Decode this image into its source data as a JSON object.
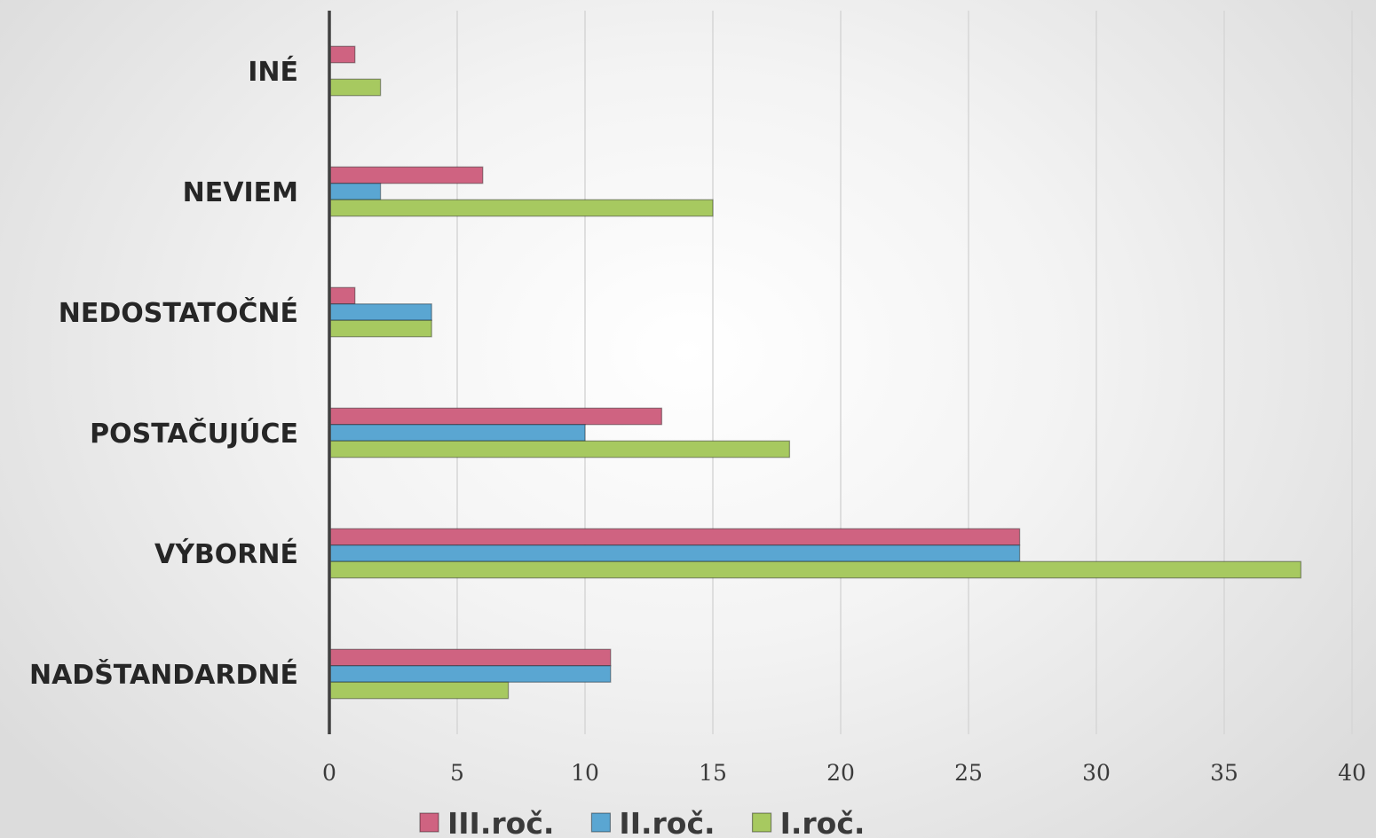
{
  "chart_data": {
    "type": "bar",
    "orientation": "horizontal",
    "categories": [
      "NADŠTANDARDNÉ",
      "VÝBORNÉ",
      "POSTAČUJÚCE",
      "NEDOSTATOČNÉ",
      "NEVIEM",
      "INÉ"
    ],
    "series": [
      {
        "name": "III.roč.",
        "color": "#cf6381",
        "values": [
          11,
          27,
          13,
          1,
          6,
          1
        ]
      },
      {
        "name": "II.roč.",
        "color": "#5aa6d2",
        "values": [
          11,
          27,
          10,
          4,
          2,
          0
        ]
      },
      {
        "name": "I.roč.",
        "color": "#a7c960",
        "values": [
          7,
          38,
          18,
          4,
          15,
          2
        ]
      }
    ],
    "xlim": [
      0,
      40
    ],
    "xticks": [
      0,
      5,
      10,
      15,
      20,
      25,
      30,
      35,
      40
    ],
    "grid": true,
    "legend": "bottom"
  }
}
